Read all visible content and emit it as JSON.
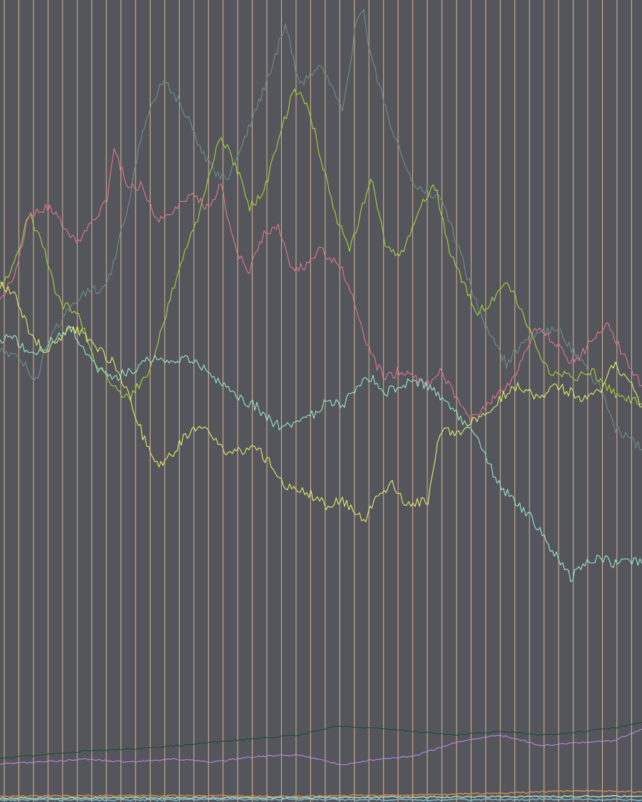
{
  "chart_data": {
    "type": "line",
    "title": "",
    "xlabel": "",
    "ylabel": "",
    "grid": "vertical",
    "legend": "none",
    "xlim": [
      0,
      450
    ],
    "ylim": [
      0,
      1124
    ],
    "background_color": "#55565b",
    "grid_color": "#f0c8a8",
    "series": [
      {
        "color": "#6f8f8b",
        "anchors": [
          [
            0,
            490
          ],
          [
            15,
            505
          ],
          [
            25,
            535
          ],
          [
            35,
            470
          ],
          [
            50,
            430
          ],
          [
            60,
            410
          ],
          [
            75,
            400
          ],
          [
            90,
            290
          ],
          [
            100,
            180
          ],
          [
            115,
            110
          ],
          [
            125,
            140
          ],
          [
            135,
            180
          ],
          [
            140,
            210
          ],
          [
            150,
            240
          ],
          [
            160,
            250
          ],
          [
            170,
            200
          ],
          [
            180,
            150
          ],
          [
            190,
            100
          ],
          [
            200,
            30
          ],
          [
            210,
            120
          ],
          [
            225,
            90
          ],
          [
            240,
            150
          ],
          [
            250,
            30
          ],
          [
            255,
            20
          ],
          [
            260,
            80
          ],
          [
            275,
            180
          ],
          [
            290,
            260
          ],
          [
            310,
            280
          ],
          [
            320,
            340
          ],
          [
            340,
            460
          ],
          [
            355,
            510
          ],
          [
            370,
            470
          ],
          [
            390,
            460
          ],
          [
            405,
            500
          ],
          [
            420,
            540
          ],
          [
            430,
            600
          ],
          [
            440,
            610
          ],
          [
            450,
            630
          ]
        ]
      },
      {
        "color": "#a8d43c",
        "anchors": [
          [
            0,
            400
          ],
          [
            10,
            370
          ],
          [
            20,
            300
          ],
          [
            30,
            340
          ],
          [
            40,
            420
          ],
          [
            55,
            440
          ],
          [
            65,
            500
          ],
          [
            75,
            530
          ],
          [
            90,
            560
          ],
          [
            105,
            520
          ],
          [
            115,
            450
          ],
          [
            125,
            380
          ],
          [
            140,
            300
          ],
          [
            150,
            220
          ],
          [
            155,
            190
          ],
          [
            165,
            230
          ],
          [
            175,
            290
          ],
          [
            185,
            270
          ],
          [
            195,
            200
          ],
          [
            205,
            130
          ],
          [
            215,
            140
          ],
          [
            225,
            220
          ],
          [
            235,
            300
          ],
          [
            245,
            350
          ],
          [
            260,
            250
          ],
          [
            270,
            340
          ],
          [
            280,
            360
          ],
          [
            295,
            290
          ],
          [
            305,
            260
          ],
          [
            315,
            350
          ],
          [
            325,
            400
          ],
          [
            335,
            440
          ],
          [
            345,
            420
          ],
          [
            355,
            390
          ],
          [
            370,
            460
          ],
          [
            385,
            520
          ],
          [
            400,
            530
          ],
          [
            415,
            520
          ],
          [
            430,
            550
          ],
          [
            445,
            560
          ],
          [
            450,
            565
          ]
        ]
      },
      {
        "color": "#e07890",
        "anchors": [
          [
            0,
            420
          ],
          [
            10,
            390
          ],
          [
            20,
            300
          ],
          [
            35,
            290
          ],
          [
            45,
            320
          ],
          [
            55,
            340
          ],
          [
            65,
            310
          ],
          [
            75,
            280
          ],
          [
            80,
            210
          ],
          [
            90,
            260
          ],
          [
            100,
            260
          ],
          [
            110,
            310
          ],
          [
            120,
            300
          ],
          [
            135,
            270
          ],
          [
            145,
            290
          ],
          [
            155,
            260
          ],
          [
            165,
            350
          ],
          [
            175,
            380
          ],
          [
            185,
            330
          ],
          [
            195,
            320
          ],
          [
            205,
            380
          ],
          [
            215,
            370
          ],
          [
            225,
            350
          ],
          [
            240,
            380
          ],
          [
            250,
            430
          ],
          [
            260,
            500
          ],
          [
            270,
            530
          ],
          [
            280,
            520
          ],
          [
            290,
            530
          ],
          [
            300,
            540
          ],
          [
            310,
            520
          ],
          [
            320,
            560
          ],
          [
            330,
            590
          ],
          [
            340,
            570
          ],
          [
            350,
            550
          ],
          [
            360,
            530
          ],
          [
            375,
            460
          ],
          [
            390,
            480
          ],
          [
            400,
            510
          ],
          [
            410,
            490
          ],
          [
            425,
            450
          ],
          [
            435,
            490
          ],
          [
            450,
            540
          ]
        ]
      },
      {
        "color": "#e4ee70",
        "anchors": [
          [
            0,
            400
          ],
          [
            10,
            410
          ],
          [
            20,
            460
          ],
          [
            30,
            490
          ],
          [
            40,
            480
          ],
          [
            50,
            460
          ],
          [
            60,
            470
          ],
          [
            70,
            490
          ],
          [
            80,
            510
          ],
          [
            90,
            550
          ],
          [
            100,
            610
          ],
          [
            110,
            650
          ],
          [
            120,
            640
          ],
          [
            130,
            610
          ],
          [
            140,
            600
          ],
          [
            150,
            610
          ],
          [
            160,
            640
          ],
          [
            170,
            630
          ],
          [
            180,
            630
          ],
          [
            190,
            650
          ],
          [
            200,
            680
          ],
          [
            215,
            690
          ],
          [
            230,
            710
          ],
          [
            240,
            700
          ],
          [
            255,
            730
          ],
          [
            265,
            690
          ],
          [
            275,
            680
          ],
          [
            285,
            710
          ],
          [
            300,
            700
          ],
          [
            305,
            640
          ],
          [
            310,
            600
          ],
          [
            320,
            610
          ],
          [
            330,
            590
          ],
          [
            340,
            580
          ],
          [
            350,
            560
          ],
          [
            360,
            540
          ],
          [
            370,
            550
          ],
          [
            380,
            560
          ],
          [
            390,
            540
          ],
          [
            400,
            550
          ],
          [
            410,
            560
          ],
          [
            420,
            550
          ],
          [
            430,
            510
          ],
          [
            440,
            530
          ],
          [
            450,
            570
          ]
        ]
      },
      {
        "color": "#9ce8d0",
        "anchors": [
          [
            0,
            480
          ],
          [
            10,
            470
          ],
          [
            20,
            500
          ],
          [
            30,
            490
          ],
          [
            40,
            470
          ],
          [
            50,
            460
          ],
          [
            60,
            490
          ],
          [
            70,
            520
          ],
          [
            80,
            530
          ],
          [
            90,
            520
          ],
          [
            100,
            510
          ],
          [
            110,
            500
          ],
          [
            120,
            510
          ],
          [
            130,
            500
          ],
          [
            140,
            510
          ],
          [
            150,
            530
          ],
          [
            160,
            540
          ],
          [
            170,
            560
          ],
          [
            180,
            570
          ],
          [
            190,
            590
          ],
          [
            200,
            600
          ],
          [
            210,
            590
          ],
          [
            220,
            580
          ],
          [
            230,
            560
          ],
          [
            240,
            570
          ],
          [
            250,
            540
          ],
          [
            260,
            530
          ],
          [
            270,
            550
          ],
          [
            280,
            540
          ],
          [
            290,
            535
          ],
          [
            300,
            540
          ],
          [
            310,
            560
          ],
          [
            320,
            580
          ],
          [
            330,
            600
          ],
          [
            340,
            640
          ],
          [
            350,
            680
          ],
          [
            360,
            700
          ],
          [
            370,
            720
          ],
          [
            380,
            750
          ],
          [
            390,
            780
          ],
          [
            400,
            810
          ],
          [
            410,
            790
          ],
          [
            420,
            780
          ],
          [
            430,
            790
          ],
          [
            440,
            785
          ],
          [
            450,
            790
          ]
        ]
      },
      {
        "color": "#1e4a36",
        "anchors": [
          [
            0,
            1063
          ],
          [
            30,
            1058
          ],
          [
            60,
            1052
          ],
          [
            90,
            1050
          ],
          [
            120,
            1046
          ],
          [
            150,
            1040
          ],
          [
            180,
            1035
          ],
          [
            210,
            1030
          ],
          [
            235,
            1018
          ],
          [
            260,
            1020
          ],
          [
            290,
            1025
          ],
          [
            320,
            1030
          ],
          [
            350,
            1025
          ],
          [
            380,
            1030
          ],
          [
            410,
            1025
          ],
          [
            430,
            1020
          ],
          [
            450,
            1012
          ]
        ]
      },
      {
        "color": "#b88ae0",
        "anchors": [
          [
            0,
            1070
          ],
          [
            30,
            1068
          ],
          [
            60,
            1064
          ],
          [
            90,
            1068
          ],
          [
            120,
            1064
          ],
          [
            150,
            1068
          ],
          [
            180,
            1060
          ],
          [
            210,
            1058
          ],
          [
            240,
            1072
          ],
          [
            260,
            1065
          ],
          [
            290,
            1060
          ],
          [
            320,
            1040
          ],
          [
            350,
            1030
          ],
          [
            380,
            1045
          ],
          [
            410,
            1040
          ],
          [
            430,
            1038
          ],
          [
            450,
            1022
          ]
        ]
      },
      {
        "color": "#d08858",
        "anchors": [
          [
            0,
            1116
          ],
          [
            100,
            1115
          ],
          [
            200,
            1116
          ],
          [
            300,
            1114
          ],
          [
            380,
            1110
          ],
          [
            410,
            1108
          ],
          [
            430,
            1109
          ],
          [
            450,
            1110
          ]
        ]
      },
      {
        "color": "#a8d8b0",
        "anchors": [
          [
            0,
            1119
          ],
          [
            100,
            1118
          ],
          [
            200,
            1118
          ],
          [
            300,
            1117
          ],
          [
            400,
            1116
          ],
          [
            450,
            1116
          ]
        ]
      },
      {
        "color": "#7ab8d0",
        "anchors": [
          [
            0,
            1121
          ],
          [
            100,
            1121
          ],
          [
            200,
            1120
          ],
          [
            300,
            1121
          ],
          [
            400,
            1120
          ],
          [
            450,
            1121
          ]
        ]
      }
    ]
  }
}
